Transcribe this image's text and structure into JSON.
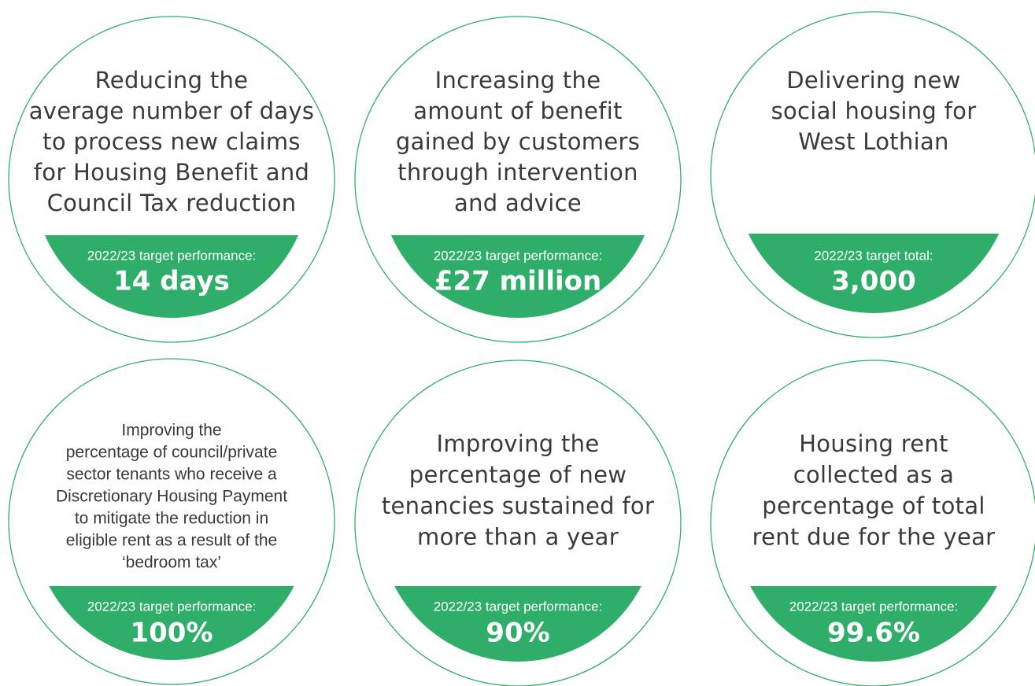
{
  "items": [
    {
      "description": [
        "Reducing the",
        "average number of days",
        "to process new claims",
        "for Housing Benefit and",
        "Council Tax reduction"
      ],
      "target_label": "2022/23 target performance:",
      "target_value": "14 days"
    },
    {
      "description": [
        "Increasing the",
        "amount of benefit",
        "gained by customers",
        "through intervention",
        "and advice"
      ],
      "target_label": "2022/23 target performance:",
      "target_value": "£27 million"
    },
    {
      "description": [
        "Delivering new",
        "social housing for",
        "West Lothian"
      ],
      "target_label": "2022/23 target total:",
      "target_value": "3,000"
    },
    {
      "description": [
        "Improving the",
        "percentage of council/private",
        "sector tenants who receive a",
        "Discretionary Housing Payment",
        "to mitigate the reduction in",
        "eligible rent as a result of the",
        "‘bedroom tax’"
      ],
      "target_label": "2022/23 target performance:",
      "target_value": "100%"
    },
    {
      "description": [
        "Improving the",
        "percentage of new",
        "tenancies sustained for",
        "more than a year"
      ],
      "target_label": "2022/23 target performance:",
      "target_value": "90%"
    },
    {
      "description": [
        "Housing rent",
        "collected as a",
        "percentage of total",
        "rent due for the year"
      ],
      "target_label": "2022/23 target performance:",
      "target_value": "99.6%"
    }
  ]
}
